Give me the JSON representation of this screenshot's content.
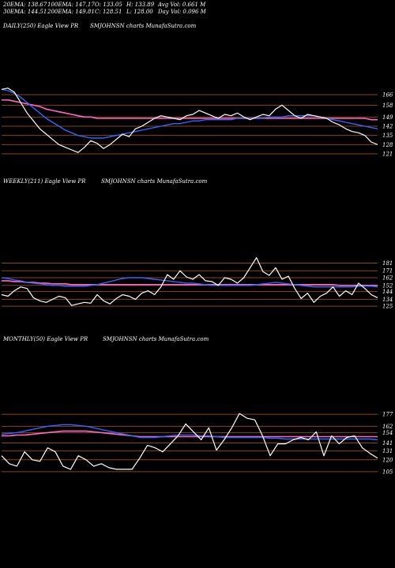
{
  "header": {
    "ema20": "20EMA: 138.67",
    "ema100": "100EMA: 147.17",
    "open": "O: 133.05",
    "high": "H: 133.89",
    "avg_vol": "Avg Vol: 0.661 M",
    "ema30": "30EMA: 144.51",
    "ema200": "200EMA: 149.81",
    "close": "C: 128.51",
    "low": "L: 128.00",
    "day_vol": "Day Vol: 0.096  M"
  },
  "colors": {
    "background": "#000000",
    "price": "#ffffff",
    "ema_fast": "#ff66cc",
    "ema_blue": "#3366ff",
    "ema_slow": "#ffffff",
    "gridline": "#8b4513"
  },
  "chart_data": [
    {
      "type": "line",
      "title": "DAILY(250) Eagle  View  PR",
      "subtitle": "SMJOHNSN  charts MunafaSutra.com",
      "y_ticks": [
        166,
        158,
        149,
        142,
        135,
        128,
        121
      ],
      "ylim": [
        115,
        172
      ],
      "series": [
        {
          "values": [
            170,
            171,
            168,
            160,
            152,
            146,
            140,
            136,
            132,
            128,
            126,
            124,
            122,
            126,
            131,
            129,
            125,
            128,
            132,
            136,
            134,
            140,
            142,
            145,
            148,
            150,
            149,
            148,
            147,
            150,
            151,
            154,
            152,
            150,
            148,
            151,
            150,
            152,
            149,
            147,
            149,
            151,
            150,
            155,
            158,
            154,
            150,
            148,
            151,
            150,
            149,
            148,
            145,
            143,
            140,
            138,
            137,
            135,
            130,
            128
          ]
        },
        {
          "values": [
            170,
            169,
            167,
            164,
            160,
            156,
            152,
            148,
            145,
            142,
            139,
            137,
            135,
            134,
            133,
            133,
            133,
            134,
            135,
            136,
            137,
            138,
            139,
            140,
            141,
            142,
            143,
            144,
            144,
            145,
            146,
            146,
            147,
            147,
            147,
            147,
            147,
            148,
            148,
            148,
            148,
            148,
            149,
            149,
            149,
            150,
            150,
            150,
            150,
            150,
            149,
            148,
            147,
            146,
            145,
            144,
            143,
            142,
            141,
            140
          ]
        },
        {
          "values": [
            162,
            162,
            161,
            160,
            159,
            158,
            157,
            155,
            154,
            153,
            152,
            151,
            150,
            149,
            149,
            148,
            148,
            148,
            148,
            148,
            148,
            148,
            148,
            148,
            148,
            148,
            148,
            148,
            148,
            148,
            148,
            148,
            148,
            148,
            148,
            148,
            148,
            148,
            148,
            148,
            148,
            148,
            148,
            148,
            148,
            148,
            148,
            148,
            148,
            148,
            148,
            148,
            148,
            148,
            148,
            148,
            148,
            148,
            147,
            147
          ]
        }
      ]
    },
    {
      "type": "line",
      "title": "WEEKLY(211) Eagle  View  PR",
      "subtitle": "SMJOHNSN  charts MunafaSutra.com",
      "y_ticks": [
        181,
        171,
        162,
        152,
        144,
        134,
        125
      ],
      "ylim": [
        118,
        205
      ],
      "series": [
        {
          "values": [
            140,
            138,
            145,
            150,
            148,
            136,
            132,
            130,
            134,
            138,
            136,
            126,
            128,
            130,
            129,
            140,
            132,
            128,
            135,
            140,
            138,
            134,
            142,
            145,
            140,
            150,
            166,
            160,
            171,
            163,
            160,
            166,
            158,
            157,
            152,
            162,
            160,
            155,
            162,
            175,
            188,
            170,
            165,
            175,
            160,
            164,
            148,
            135,
            142,
            130,
            138,
            142,
            150,
            138,
            145,
            140,
            155,
            148,
            140,
            136
          ]
        },
        {
          "values": [
            162,
            161,
            159,
            158,
            156,
            155,
            154,
            153,
            152,
            152,
            151,
            151,
            151,
            151,
            152,
            153,
            155,
            157,
            159,
            161,
            162,
            162,
            162,
            161,
            160,
            159,
            158,
            157,
            156,
            155,
            155,
            154,
            153,
            152,
            152,
            152,
            152,
            152,
            152,
            152,
            153,
            154,
            155,
            156,
            155,
            154,
            153,
            152,
            151,
            150,
            150,
            150,
            150,
            150,
            150,
            150,
            151,
            151,
            151,
            150
          ]
        },
        {
          "values": [
            158,
            158,
            157,
            157,
            156,
            156,
            155,
            155,
            154,
            154,
            154,
            153,
            153,
            153,
            153,
            153,
            153,
            153,
            153,
            153,
            153,
            153,
            153,
            153,
            153,
            153,
            153,
            153,
            153,
            153,
            153,
            153,
            153,
            153,
            153,
            153,
            153,
            153,
            153,
            153,
            153,
            153,
            153,
            153,
            153,
            153,
            153,
            153,
            153,
            153,
            153,
            153,
            153,
            152,
            152,
            152,
            152,
            152,
            152,
            152
          ]
        }
      ]
    },
    {
      "type": "line",
      "title": "MONTHLY(50) Eagle  View  PR",
      "subtitle": "SMJOHNSN  charts MunafaSutra.com",
      "y_ticks": [
        177,
        162,
        154,
        141,
        131,
        120,
        105
      ],
      "ylim": [
        98,
        192
      ],
      "series": [
        {
          "values": [
            125,
            115,
            112,
            130,
            120,
            118,
            135,
            130,
            112,
            108,
            125,
            120,
            112,
            115,
            110,
            108,
            108,
            108,
            122,
            138,
            135,
            130,
            140,
            150,
            165,
            155,
            145,
            160,
            132,
            145,
            160,
            178,
            172,
            170,
            150,
            125,
            140,
            140,
            145,
            148,
            145,
            155,
            125,
            150,
            140,
            148,
            150,
            135,
            128,
            122
          ]
        },
        {
          "values": [
            152,
            153,
            154,
            156,
            158,
            160,
            162,
            163,
            164,
            164,
            163,
            162,
            160,
            158,
            156,
            154,
            152,
            150,
            148,
            148,
            148,
            149,
            150,
            151,
            151,
            151,
            150,
            150,
            149,
            148,
            148,
            148,
            148,
            148,
            148,
            147,
            147,
            146,
            146,
            146,
            146,
            146,
            146,
            146,
            146,
            146,
            146,
            146,
            146,
            145
          ]
        },
        {
          "values": [
            150,
            150,
            151,
            151,
            152,
            153,
            154,
            155,
            156,
            156,
            156,
            156,
            155,
            154,
            153,
            152,
            151,
            150,
            149,
            149,
            149,
            149,
            149,
            149,
            149,
            149,
            149,
            149,
            149,
            149,
            149,
            149,
            149,
            149,
            149,
            149,
            149,
            149,
            149,
            149,
            149,
            149,
            149,
            149,
            149,
            149,
            149,
            149,
            149,
            149
          ]
        }
      ]
    }
  ]
}
